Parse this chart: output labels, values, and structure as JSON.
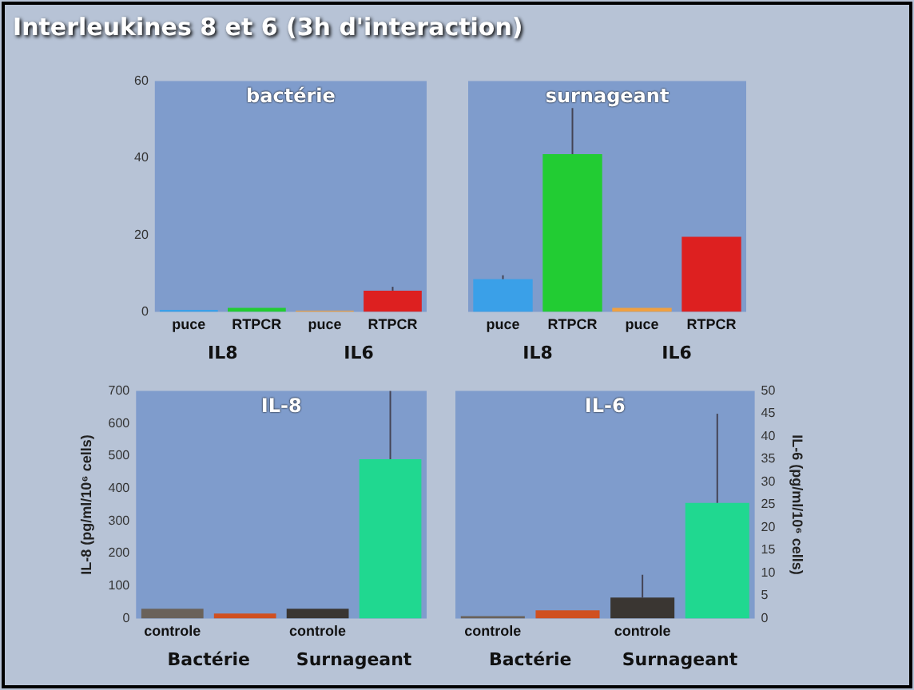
{
  "chart_data": [
    {
      "type": "bar",
      "title": "Interleukines 8 et 6 (3h d'interaction)",
      "subtitle": "bactérie",
      "categories": [
        "puce",
        "RTPCR",
        "puce",
        "RTPCR"
      ],
      "annotations": [
        "IL8",
        "IL6"
      ],
      "ylim": [
        0,
        60
      ],
      "yticks": [
        0,
        20,
        40,
        60
      ],
      "series": [
        {
          "values": [
            0.5,
            1,
            0.3,
            5.5
          ],
          "colors": [
            "#3aa0e8",
            "#22cc33",
            "#f0a040",
            "#dd2020"
          ],
          "errors": [
            null,
            null,
            null,
            [
              5.5,
              6.5
            ]
          ]
        }
      ]
    },
    {
      "type": "bar",
      "subtitle": "surnageant",
      "categories": [
        "puce",
        "RTPCR",
        "puce",
        "RTPCR"
      ],
      "annotations": [
        "IL8",
        "IL6"
      ],
      "ylim": [
        0,
        60
      ],
      "yticks": [
        0,
        20,
        40,
        60
      ],
      "tick_labels": "x",
      "series": [
        {
          "values": [
            8.5,
            41,
            1,
            19.5
          ],
          "colors": [
            "#3aa0e8",
            "#22cc33",
            "#f0a040",
            "#dd2020"
          ],
          "errors": [
            [
              8.5,
              9.5
            ],
            [
              41,
              53
            ],
            null,
            null
          ]
        }
      ]
    },
    {
      "type": "bar",
      "subtitle": "IL-8",
      "categories": [
        "controle",
        null,
        "controle",
        null
      ],
      "annotations": [
        "Bactérie",
        "Surnageant"
      ],
      "ylabel": "IL-8 (pg/ml/10⁶ cells)",
      "ylim": [
        0,
        700
      ],
      "yticks": [
        0,
        100,
        200,
        300,
        400,
        500,
        600,
        700
      ],
      "series": [
        {
          "values": [
            30,
            15,
            30,
            490
          ],
          "colors": [
            "#6a625a",
            "#d05020",
            "#3a3632",
            "#20d890"
          ],
          "errors": [
            null,
            null,
            null,
            [
              490,
              700
            ]
          ]
        }
      ]
    },
    {
      "type": "bar",
      "subtitle": "IL-6",
      "categories": [
        "controle",
        null,
        "controle",
        null
      ],
      "annotations": [
        "Bactérie",
        "Surnageant"
      ],
      "y2label": "IL-6 (pg/ml/10⁶ cells)",
      "y2lim": [
        0,
        50
      ],
      "y2ticks": [
        0,
        5,
        10,
        15,
        20,
        25,
        30,
        35,
        40,
        45,
        50
      ],
      "series": [
        {
          "axis": "y2",
          "values": [
            0.5,
            1.8,
            4.6,
            25.4
          ],
          "colors": [
            "#6a625a",
            "#d05020",
            "#3a3632",
            "#20d890"
          ],
          "errors": [
            null,
            null,
            [
              4.6,
              9.6
            ],
            [
              25.4,
              45
            ]
          ]
        }
      ]
    }
  ]
}
